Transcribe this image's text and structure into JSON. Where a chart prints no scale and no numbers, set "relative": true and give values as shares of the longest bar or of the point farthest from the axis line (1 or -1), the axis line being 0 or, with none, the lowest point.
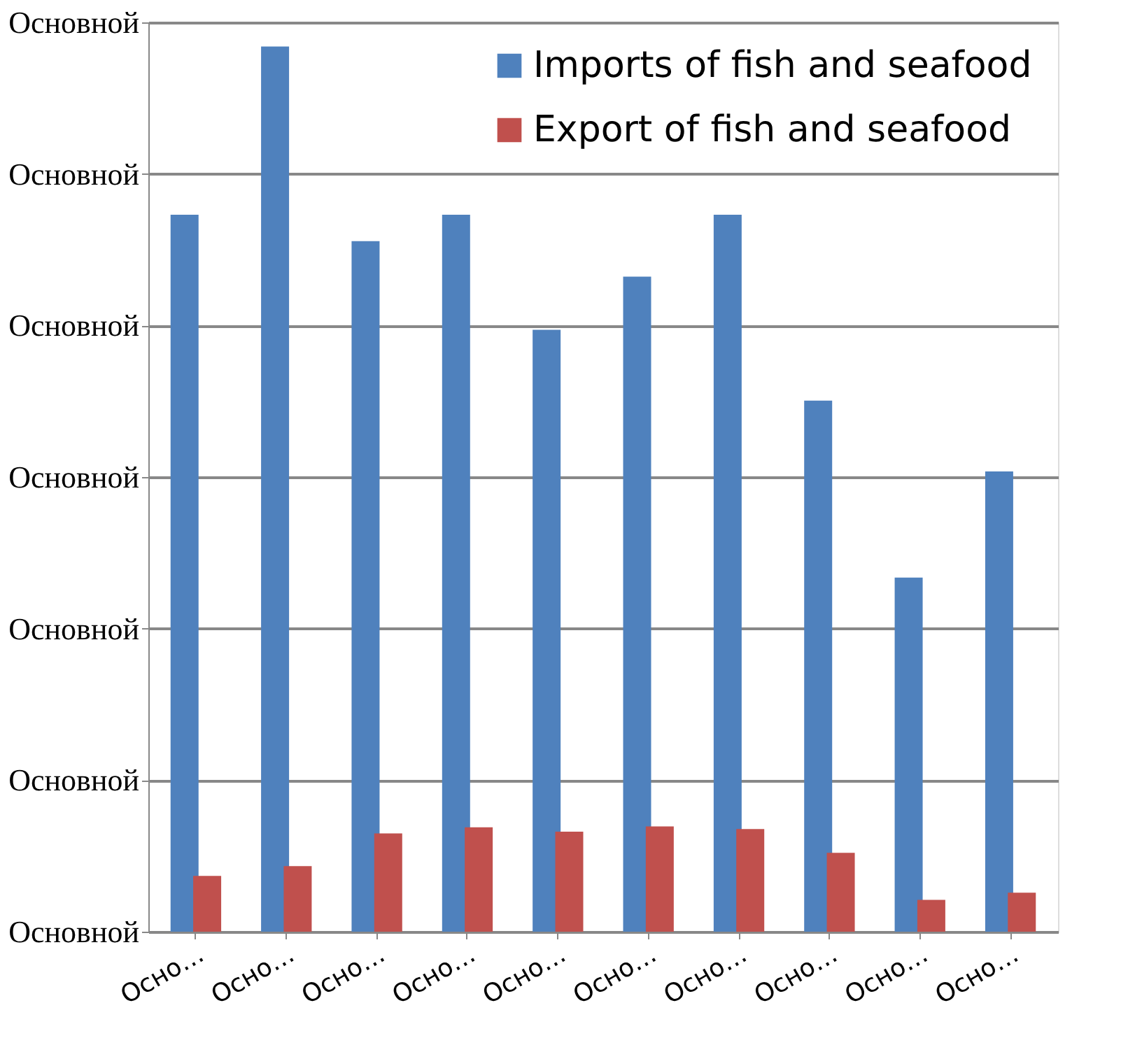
{
  "chart_data": {
    "type": "bar",
    "relative": true,
    "categories": [
      "Осно…",
      "Осно…",
      "Осно…",
      "Осно…",
      "Осно…",
      "Осно…",
      "Осно…",
      "Осно…",
      "Осно…",
      "Осно…"
    ],
    "series": [
      {
        "name": "Imports of fish and seafood",
        "color": "#4f81bd",
        "values": [
          0.81,
          1,
          0.78,
          0.81,
          0.68,
          0.74,
          0.81,
          0.6,
          0.4,
          0.52
        ]
      },
      {
        "name": "Export of fish and seafood",
        "color": "#c0504d",
        "values": [
          0.063,
          0.074,
          0.111,
          0.118,
          0.113,
          0.119,
          0.116,
          0.089,
          0.036,
          0.044
        ]
      }
    ],
    "annotations": [
      "Основной",
      "Основной",
      "Основной",
      "Основной",
      "Основной",
      "Основной",
      "Основной"
    ],
    "grid": "y",
    "legend": "top right"
  }
}
